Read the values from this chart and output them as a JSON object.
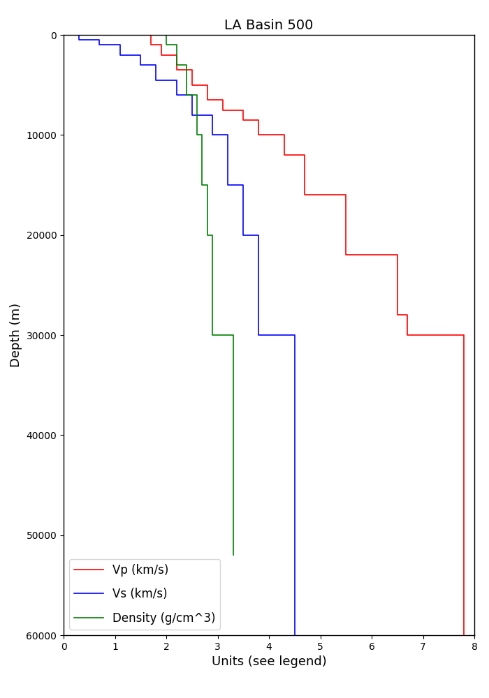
{
  "title": "LA Basin 500",
  "xlabel": "Units (see legend)",
  "ylabel": "Depth (m)",
  "xlim": [
    0,
    8
  ],
  "ylim": [
    60000,
    0
  ],
  "xticks": [
    0,
    1,
    2,
    3,
    4,
    5,
    6,
    7,
    8
  ],
  "yticks": [
    0,
    10000,
    20000,
    30000,
    40000,
    50000,
    60000
  ],
  "legend_labels": [
    "Vp (km/s)",
    "Vs (km/s)",
    "Density (g/cm^3)"
  ],
  "background_color": "white",
  "figsize": [
    7.0,
    10.0
  ],
  "dpi": 100,
  "vp_x": [
    1.7,
    1.7,
    1.9,
    1.9,
    2.2,
    2.2,
    2.5,
    2.5,
    2.8,
    2.8,
    3.1,
    3.1,
    3.5,
    3.5,
    3.8,
    3.8,
    4.3,
    4.3,
    4.7,
    4.7,
    5.5,
    5.5,
    6.5,
    6.5,
    6.7,
    6.7,
    7.8,
    7.8
  ],
  "vp_y": [
    0,
    1000,
    1000,
    2000,
    2000,
    3500,
    3500,
    5000,
    5000,
    6500,
    6500,
    7500,
    7500,
    8500,
    8500,
    10000,
    10000,
    12000,
    12000,
    16000,
    16000,
    22000,
    22000,
    28000,
    28000,
    30000,
    30000,
    60000
  ],
  "vs_x": [
    0.3,
    0.3,
    0.7,
    0.7,
    1.1,
    1.1,
    1.5,
    1.5,
    1.8,
    1.8,
    2.2,
    2.2,
    2.5,
    2.5,
    2.9,
    2.9,
    3.2,
    3.2,
    3.5,
    3.5,
    3.8,
    3.8,
    4.5,
    4.5
  ],
  "vs_y": [
    0,
    500,
    500,
    1000,
    1000,
    2000,
    2000,
    3000,
    3000,
    4500,
    4500,
    6000,
    6000,
    8000,
    8000,
    10000,
    10000,
    15000,
    15000,
    20000,
    20000,
    30000,
    30000,
    60000
  ],
  "den_x": [
    2.0,
    2.0,
    2.2,
    2.2,
    2.4,
    2.4,
    2.6,
    2.6,
    2.7,
    2.7,
    2.8,
    2.8,
    2.9,
    2.9,
    3.3,
    3.3
  ],
  "den_y": [
    0,
    1000,
    1000,
    3000,
    3000,
    6000,
    6000,
    10000,
    10000,
    15000,
    15000,
    20000,
    20000,
    30000,
    30000,
    52000
  ]
}
